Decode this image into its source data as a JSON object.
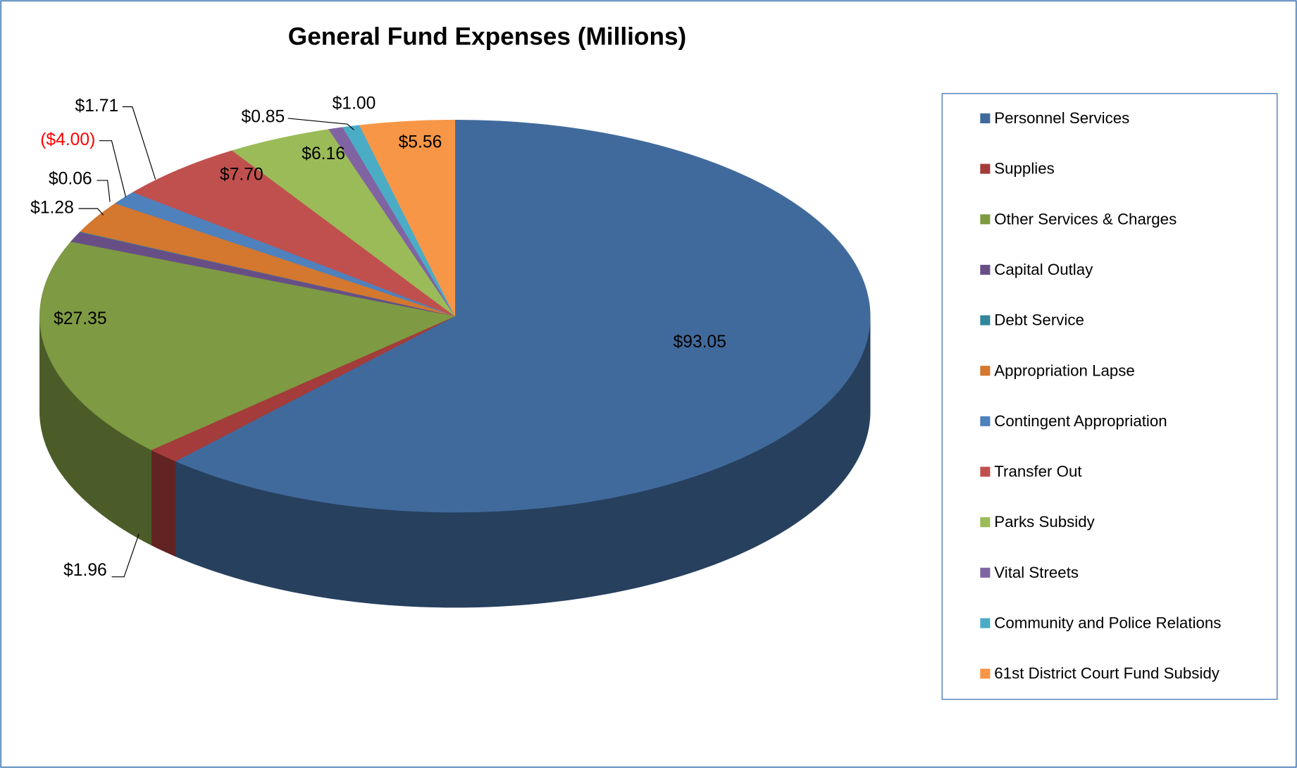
{
  "chart_data": {
    "type": "pie",
    "title": "General Fund Expenses (Millions)",
    "categories": [
      "Personnel Services",
      "Supplies",
      "Other Services & Charges",
      "Capital Outlay",
      "Debt Service",
      "Appropriation Lapse",
      "Contingent Appropriation",
      "Transfer Out",
      "Parks Subsidy",
      "Vital Streets",
      "Community and Police Relations",
      "61st District Court Fund Subsidy"
    ],
    "values": [
      93.05,
      1.96,
      27.35,
      1.28,
      0.06,
      -4.0,
      1.71,
      7.7,
      6.16,
      0.85,
      1.0,
      5.56
    ],
    "value_labels": [
      "$93.05",
      "$1.96",
      "$27.35",
      "$1.28",
      "$0.06",
      "($4.00)",
      "$1.71",
      "$7.70",
      "$6.16",
      "$0.85",
      "$1.00",
      "$5.56"
    ],
    "colors": [
      "#416a9c",
      "#a33c3a",
      "#7e9a43",
      "#674f86",
      "#31869b",
      "#d4772f",
      "#4f81bd",
      "#c0504d",
      "#9bbb59",
      "#8064a2",
      "#4bacc6",
      "#f79646"
    ],
    "negative_label_color": "#ff0000",
    "legend": "right"
  }
}
